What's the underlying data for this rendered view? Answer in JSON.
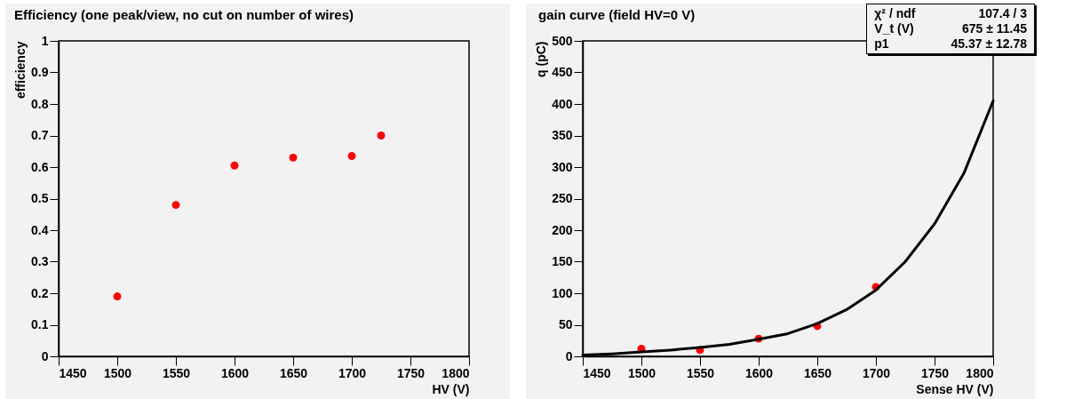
{
  "chart_data": [
    {
      "type": "scatter",
      "title": "Efficiency (one peak/view, no cut on number of wires)",
      "xlabel": "HV (V)",
      "ylabel": "efficiency",
      "x": [
        1500,
        1550,
        1600,
        1650,
        1700,
        1725
      ],
      "values": [
        0.19,
        0.48,
        0.605,
        0.63,
        0.635,
        0.7
      ],
      "color": "#ff0000",
      "marker": "circle",
      "xlim": [
        1450,
        1800
      ],
      "xticks": [
        1450,
        1500,
        1550,
        1600,
        1650,
        1700,
        1750,
        1800
      ],
      "ylim": [
        0,
        1
      ],
      "yticks": [
        0,
        0.1,
        0.2,
        0.3,
        0.4,
        0.5,
        0.6,
        0.7,
        0.8,
        0.9,
        1
      ]
    },
    {
      "type": "scatter",
      "title": "gain curve (field HV=0 V)",
      "xlabel": "Sense HV (V)",
      "ylabel": "q (pC)",
      "xlim": [
        1450,
        1800
      ],
      "xticks": [
        1450,
        1500,
        1550,
        1600,
        1650,
        1700,
        1750,
        1800
      ],
      "ylim": [
        0,
        500
      ],
      "yticks": [
        0,
        50,
        100,
        150,
        200,
        250,
        300,
        350,
        400,
        450,
        500
      ],
      "series": [
        {
          "type": "scatter",
          "color": "#ff0000",
          "marker": "circle",
          "x": [
            1500,
            1550,
            1600,
            1650,
            1700
          ],
          "values": [
            12,
            10,
            28,
            48,
            110
          ]
        },
        {
          "type": "line",
          "color": "#000000",
          "line_style": "solid",
          "x": [
            1450,
            1475,
            1500,
            1525,
            1550,
            1575,
            1600,
            1625,
            1650,
            1675,
            1700,
            1725,
            1750,
            1775,
            1800
          ],
          "values": [
            2,
            4,
            7,
            10,
            14,
            19,
            27,
            36,
            52,
            74,
            105,
            150,
            210,
            290,
            405
          ]
        }
      ],
      "annotations": [
        "χ² / ndf",
        "107.4 / 3",
        "V_t (V)",
        "675 ± 11.45",
        "p1",
        "45.37 ± 12.78"
      ]
    }
  ]
}
